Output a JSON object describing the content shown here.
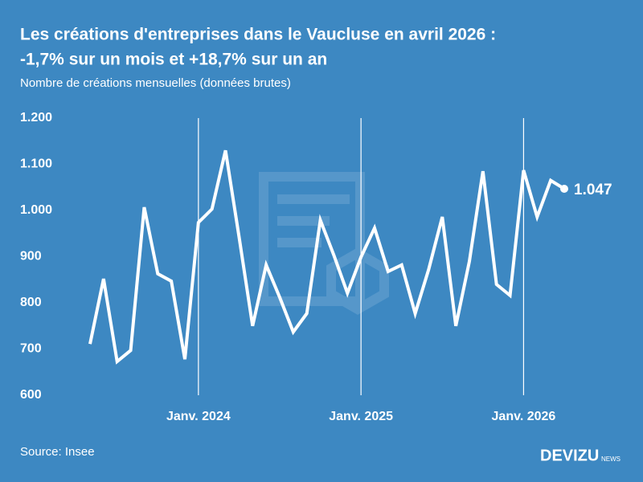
{
  "chart_data": {
    "type": "line",
    "title_line1": "Les créations d'entreprises dans le Vaucluse en avril 2026 :",
    "title_line2": "-1,7% sur un mois et +18,7% sur un an",
    "subtitle": "Nombre de créations mensuelles (données brutes)",
    "source": "Source: Insee",
    "brand": "DEVIZU",
    "brand_suffix": "NEWS",
    "categories": [
      null,
      null,
      null,
      null,
      null,
      null,
      null,
      null,
      "Janv. 2024",
      null,
      null,
      null,
      null,
      null,
      null,
      null,
      null,
      null,
      null,
      null,
      "Janv. 2025",
      null,
      null,
      null,
      null,
      null,
      null,
      null,
      null,
      null,
      null,
      null,
      "Janv. 2026",
      null,
      null,
      null
    ],
    "series": [
      {
        "name": "Créations",
        "color": "#ffffff",
        "values": [
          711,
          852,
          673,
          697,
          1007,
          863,
          847,
          678,
          974,
          1003,
          1130,
          943,
          750,
          882,
          812,
          737,
          777,
          979,
          903,
          821,
          899,
          962,
          868,
          882,
          777,
          873,
          986,
          750,
          890,
          1085,
          840,
          816,
          1087,
          986,
          1065,
          1047
        ],
        "value_labels": [
          null,
          null,
          null,
          null,
          null,
          null,
          null,
          null,
          null,
          null,
          null,
          null,
          null,
          null,
          null,
          null,
          null,
          null,
          null,
          null,
          null,
          null,
          null,
          null,
          null,
          null,
          null,
          null,
          null,
          null,
          null,
          null,
          null,
          null,
          null,
          "1.047"
        ]
      }
    ],
    "ylim": [
      600,
      1200
    ],
    "yticks": [
      600,
      700,
      800,
      900,
      {
        "value": 1000,
        "label": "1.000"
      },
      {
        "value": 1100,
        "label": "1.100"
      },
      {
        "value": 1200,
        "label": "1.200"
      }
    ],
    "grid": false,
    "category_grid": true
  }
}
